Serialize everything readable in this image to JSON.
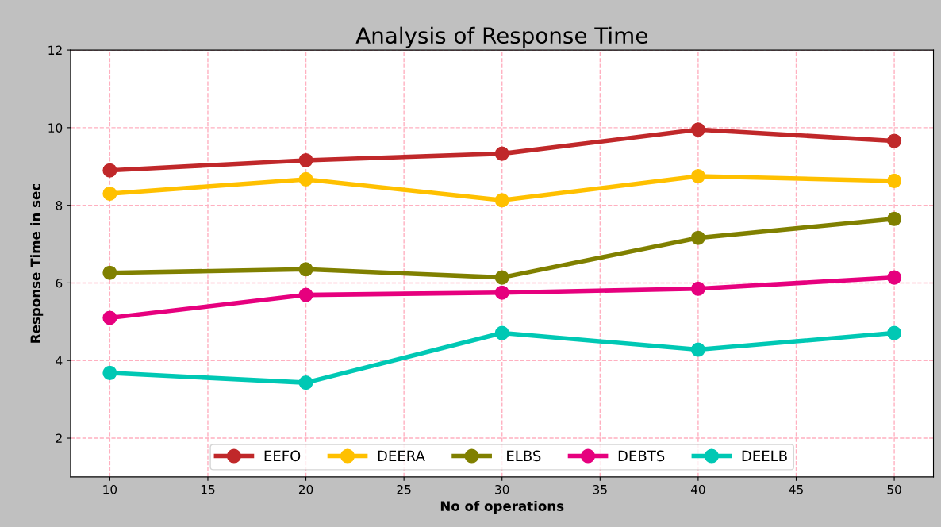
{
  "chart_data": {
    "type": "line",
    "title": "Analysis of Response Time",
    "xlabel": "No of operations",
    "ylabel": "Response Time in sec",
    "x": [
      10,
      20,
      30,
      40,
      50
    ],
    "series": [
      {
        "name": "EEFO",
        "color": "#c0282a",
        "values": [
          8.9,
          9.16,
          9.33,
          9.95,
          9.66
        ]
      },
      {
        "name": "DEERA",
        "color": "#ffc000",
        "values": [
          8.3,
          8.67,
          8.13,
          8.75,
          8.63
        ]
      },
      {
        "name": " ELBS",
        "color": "#808000",
        "values": [
          6.26,
          6.35,
          6.14,
          7.16,
          7.65
        ]
      },
      {
        "name": "DEBTS",
        "color": "#e6007e",
        "values": [
          5.1,
          5.69,
          5.75,
          5.85,
          6.14
        ]
      },
      {
        "name": "DEELB",
        "color": "#00c8b4",
        "values": [
          3.68,
          3.43,
          4.71,
          4.28,
          4.71
        ]
      }
    ],
    "xlim": [
      8,
      52
    ],
    "ylim": [
      1,
      12
    ],
    "xticks": [
      10,
      15,
      20,
      25,
      30,
      35,
      40,
      45,
      50
    ],
    "yticks": [
      2,
      4,
      6,
      8,
      10,
      12
    ],
    "grid": true,
    "legend": "bottom",
    "marker": "circle",
    "line_style": "solid"
  }
}
